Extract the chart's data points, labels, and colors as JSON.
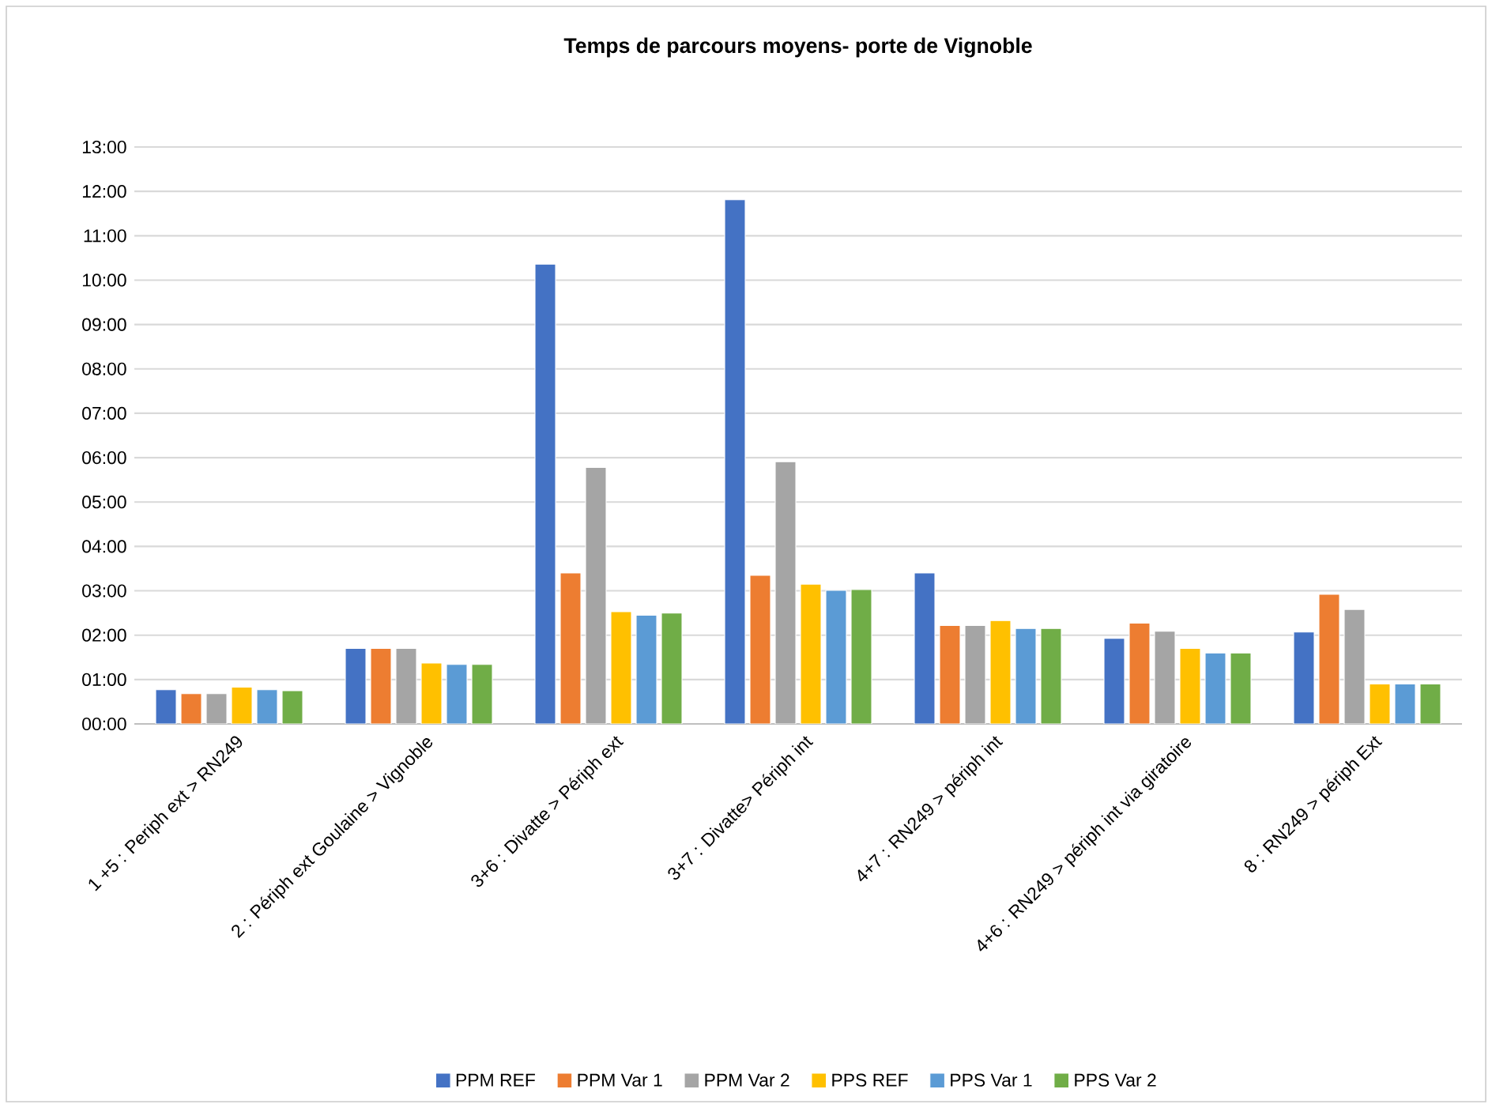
{
  "chart_data": {
    "type": "bar",
    "title": "Temps de parcours moyens- porte de Vignoble",
    "categories": [
      "1 +5 : Periph ext > RN249",
      "2 : Périph ext Goulaine > Vignoble",
      "3+6 : Divatte > Périph ext",
      "3+7 : Divatte> Périph int",
      "4+7 : RN249 > périph int",
      "4+6 : RN249 > périph int via giratoire",
      "8 : RN249 > périph Ext"
    ],
    "series": [
      {
        "name": "PPM REF",
        "color": "#4472c4",
        "values": [
          0.77,
          1.7,
          10.36,
          11.81,
          3.4,
          1.93,
          2.07
        ]
      },
      {
        "name": "PPM Var 1",
        "color": "#ed7d31",
        "values": [
          0.68,
          1.7,
          3.4,
          3.35,
          2.22,
          2.27,
          2.92
        ]
      },
      {
        "name": "PPM Var 2",
        "color": "#a5a5a5",
        "values": [
          0.68,
          1.7,
          5.78,
          5.91,
          2.22,
          2.09,
          2.58
        ]
      },
      {
        "name": "PPS REF",
        "color": "#ffc000",
        "values": [
          0.83,
          1.37,
          2.53,
          3.15,
          2.33,
          1.7,
          0.9
        ]
      },
      {
        "name": "PPS Var 1",
        "color": "#5b9bd5",
        "values": [
          0.77,
          1.34,
          2.45,
          3.01,
          2.15,
          1.6,
          0.9
        ]
      },
      {
        "name": "PPS Var 2",
        "color": "#70ad47",
        "values": [
          0.75,
          1.34,
          2.5,
          3.03,
          2.15,
          1.6,
          0.9
        ]
      }
    ],
    "ylim": [
      0,
      13
    ],
    "yticks": [
      {
        "value": 0,
        "label": "00:00"
      },
      {
        "value": 1,
        "label": "01:00"
      },
      {
        "value": 2,
        "label": "02:00"
      },
      {
        "value": 3,
        "label": "03:00"
      },
      {
        "value": 4,
        "label": "04:00"
      },
      {
        "value": 5,
        "label": "05:00"
      },
      {
        "value": 6,
        "label": "06:00"
      },
      {
        "value": 7,
        "label": "07:00"
      },
      {
        "value": 8,
        "label": "08:00"
      },
      {
        "value": 9,
        "label": "09:00"
      },
      {
        "value": 10,
        "label": "10:00"
      },
      {
        "value": 11,
        "label": "11:00"
      },
      {
        "value": 12,
        "label": "12:00"
      },
      {
        "value": 13,
        "label": "13:00"
      }
    ],
    "grid": "y",
    "legend": "bottom"
  }
}
